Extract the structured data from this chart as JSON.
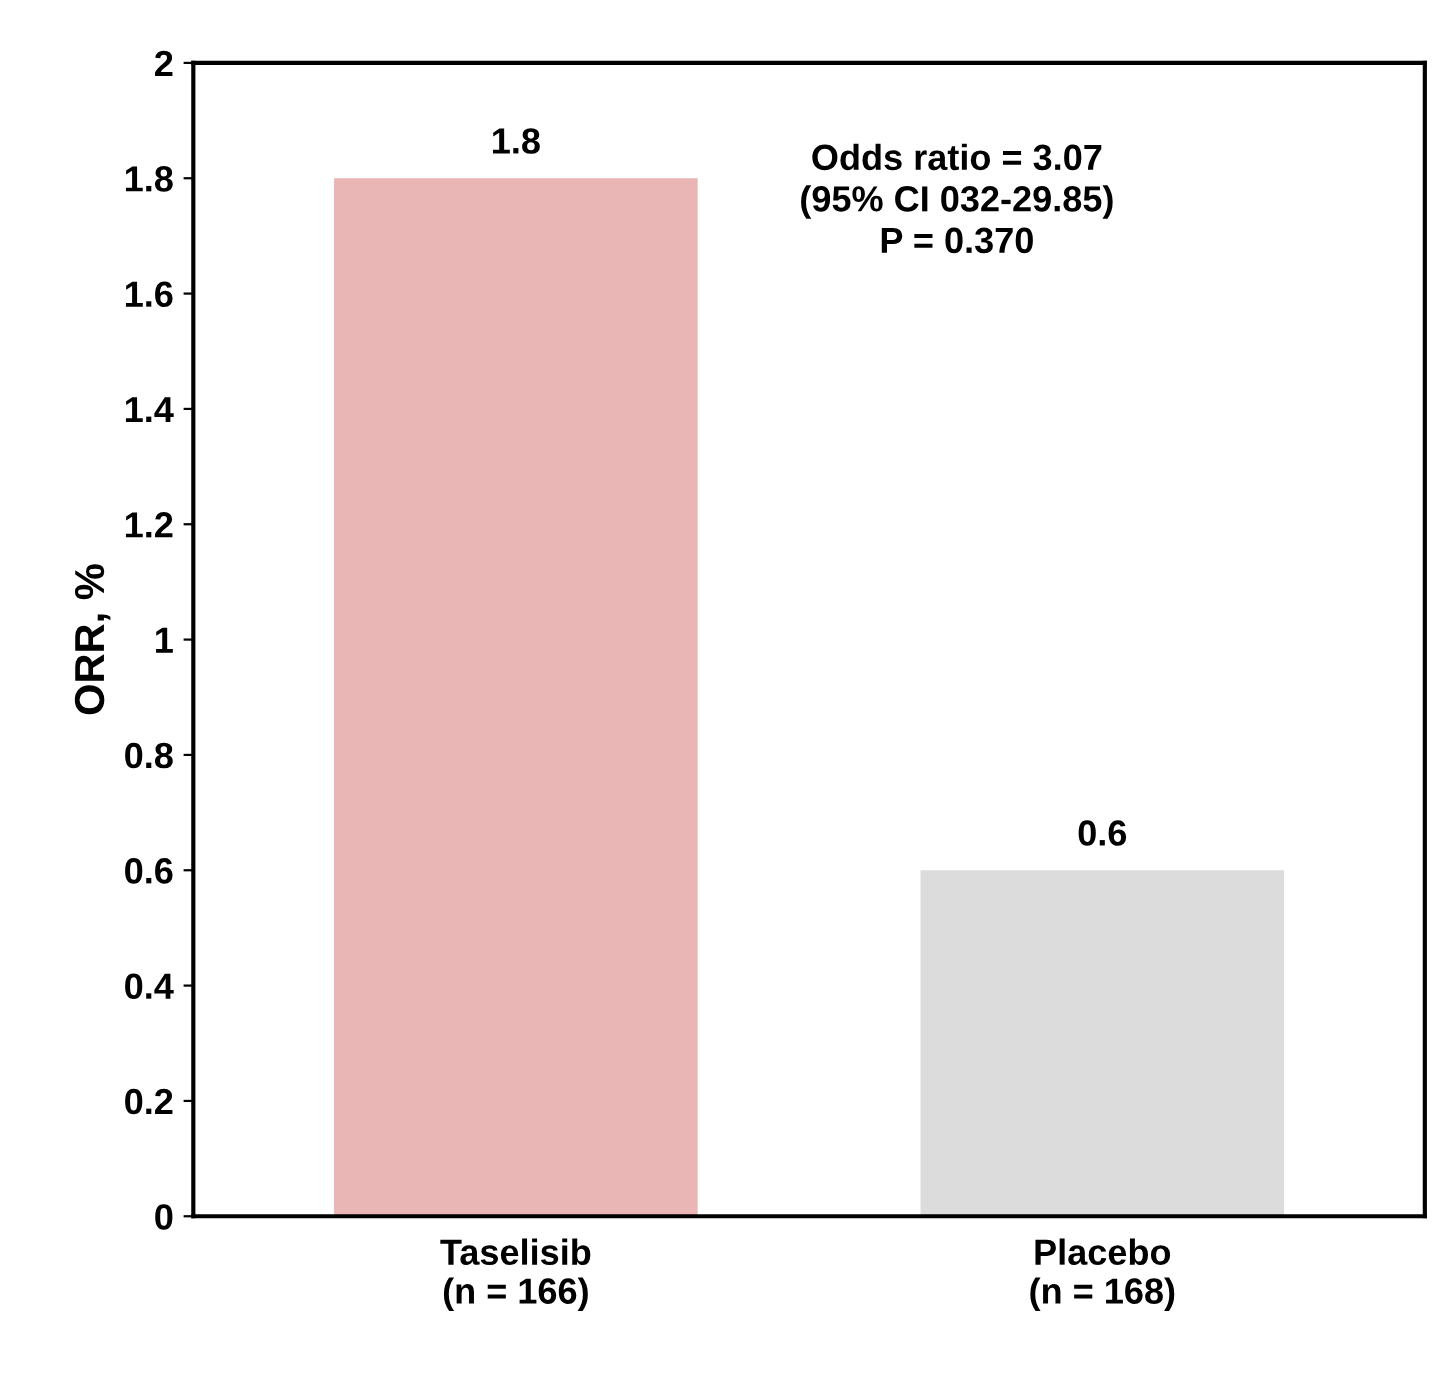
{
  "chart_data": {
    "type": "bar",
    "ylabel": "ORR, %",
    "categories": [
      "Taselisib\n(n = 166)",
      "Placebo\n(n = 168)"
    ],
    "values": [
      1.8,
      0.6
    ],
    "colors": [
      "#e9b5b5",
      "#dcdcdc"
    ],
    "ylim": [
      0,
      2
    ],
    "yticks": [
      0,
      0.2,
      0.4,
      0.6,
      0.8,
      1,
      1.2,
      1.4,
      1.6,
      1.8,
      2
    ],
    "data_labels": true,
    "grid": false,
    "annotations": [
      "Odds ratio = 3.07\n(95% CI 032-29.85)\nP = 0.370"
    ]
  }
}
